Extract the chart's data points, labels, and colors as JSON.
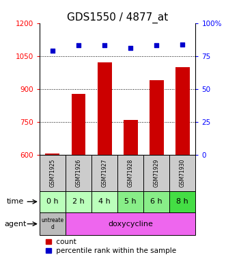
{
  "title": "GDS1550 / 4877_at",
  "samples": [
    "GSM71925",
    "GSM71926",
    "GSM71927",
    "GSM71928",
    "GSM71929",
    "GSM71930"
  ],
  "counts": [
    608,
    878,
    1020,
    760,
    940,
    1000
  ],
  "percentile_ranks": [
    79,
    83,
    83,
    81,
    83,
    84
  ],
  "time_labels": [
    "0 h",
    "2 h",
    "4 h",
    "5 h",
    "6 h",
    "8 h"
  ],
  "ylim_left": [
    600,
    1200
  ],
  "ylim_right": [
    0,
    100
  ],
  "yticks_left": [
    600,
    750,
    900,
    1050,
    1200
  ],
  "yticks_right": [
    0,
    25,
    50,
    75,
    100
  ],
  "bar_color": "#cc0000",
  "dot_color": "#0000cc",
  "bg_color": "#ffffff",
  "plot_bg": "#ffffff",
  "time_bg_colors": [
    "#bbffbb",
    "#bbffbb",
    "#bbffbb",
    "#88ee88",
    "#88ee88",
    "#44dd44"
  ],
  "agent_untreated_bg": "#bbbbbb",
  "agent_doxy_bg": "#ee66ee",
  "sample_bg": "#cccccc",
  "bar_width": 0.55,
  "title_fontsize": 11,
  "tick_fontsize": 7.5,
  "row_label_fontsize": 8,
  "legend_fontsize": 7.5
}
